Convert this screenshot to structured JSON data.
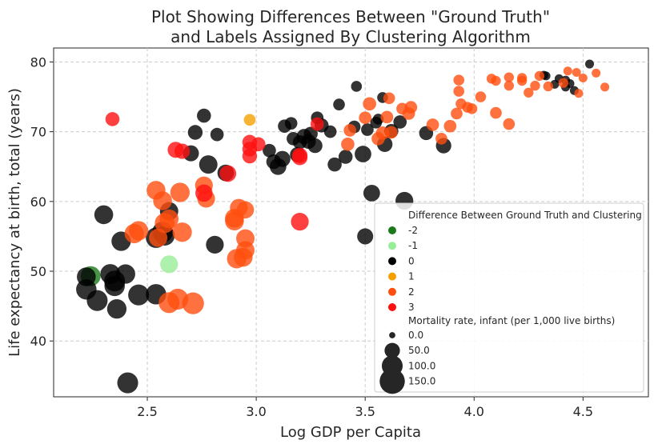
{
  "chart_data": {
    "type": "scatter",
    "title": [
      "Plot Showing Differences Between \"Ground Truth\"",
      "and Labels Assigned By Clustering Algorithm"
    ],
    "xlabel": "Log GDP per Capita",
    "ylabel": "Life expectancy at birth, total (years)",
    "xlim": [
      2.07,
      4.8
    ],
    "ylim": [
      32,
      82
    ],
    "xticks": [
      2.5,
      3.0,
      3.5,
      4.0,
      4.5
    ],
    "xtick_labels": [
      "2.5",
      "3.0",
      "3.5",
      "4.0",
      "4.5"
    ],
    "yticks": [
      40,
      50,
      60,
      70,
      80
    ],
    "ytick_labels": [
      "40",
      "50",
      "60",
      "70",
      "80"
    ],
    "grid": true,
    "legend": {
      "placement": "lower-right",
      "hue_title": "Difference Between Ground Truth and Clustering",
      "hue_entries": [
        {
          "label": "-2",
          "color": "#1a7a1a"
        },
        {
          "label": "-1",
          "color": "#98ee98"
        },
        {
          "label": "0",
          "color": "#000000"
        },
        {
          "label": "1",
          "color": "#f5a000"
        },
        {
          "label": "2",
          "color": "#ff4f0f"
        },
        {
          "label": "3",
          "color": "#ff1010"
        }
      ],
      "size_title": "Mortality rate, infant (per 1,000 live births)",
      "size_entries": [
        {
          "label": "0.0",
          "value": 0
        },
        {
          "label": "50.0",
          "value": 50
        },
        {
          "label": "100.0",
          "value": 100
        },
        {
          "label": "150.0",
          "value": 150
        }
      ]
    },
    "series": [
      {
        "name": "-2",
        "color": "#1a7a1a",
        "points": [
          [
            2.24,
            49.3,
            90
          ]
        ]
      },
      {
        "name": "-1",
        "color": "#98ee98",
        "points": [
          [
            2.6,
            51.0,
            70
          ]
        ]
      },
      {
        "name": "0",
        "color": "#000000",
        "points": [
          [
            2.22,
            49.2,
            80
          ],
          [
            2.22,
            47.4,
            95
          ],
          [
            2.27,
            45.8,
            100
          ],
          [
            2.3,
            58.1,
            80
          ],
          [
            2.33,
            49.6,
            90
          ],
          [
            2.35,
            47.9,
            95
          ],
          [
            2.36,
            44.6,
            85
          ],
          [
            2.38,
            54.3,
            85
          ],
          [
            2.4,
            49.6,
            85
          ],
          [
            2.41,
            34.0,
            100
          ],
          [
            2.35,
            48.6,
            100
          ],
          [
            2.46,
            46.6,
            100
          ],
          [
            2.54,
            46.7,
            95
          ],
          [
            2.54,
            54.8,
            95
          ],
          [
            2.57,
            55.6,
            100
          ],
          [
            2.58,
            55.1,
            90
          ],
          [
            2.6,
            58.6,
            75
          ],
          [
            2.7,
            66.9,
            55
          ],
          [
            2.72,
            69.9,
            45
          ],
          [
            2.76,
            72.3,
            40
          ],
          [
            2.78,
            65.3,
            75
          ],
          [
            2.81,
            53.8,
            70
          ],
          [
            2.82,
            69.6,
            35
          ],
          [
            2.86,
            64.1,
            60
          ],
          [
            3.06,
            67.3,
            35
          ],
          [
            3.08,
            65.7,
            45
          ],
          [
            3.1,
            65.0,
            60
          ],
          [
            3.12,
            66.1,
            55
          ],
          [
            3.13,
            70.8,
            35
          ],
          [
            3.16,
            71.2,
            30
          ],
          [
            3.17,
            69.0,
            35
          ],
          [
            3.19,
            66.7,
            50
          ],
          [
            3.2,
            68.5,
            40
          ],
          [
            3.22,
            69.3,
            50
          ],
          [
            3.24,
            68.6,
            45
          ],
          [
            3.25,
            69.7,
            40
          ],
          [
            3.27,
            68.0,
            45
          ],
          [
            3.28,
            72.0,
            30
          ],
          [
            3.3,
            70.9,
            40
          ],
          [
            3.34,
            70.0,
            30
          ],
          [
            3.36,
            65.3,
            40
          ],
          [
            3.38,
            73.9,
            25
          ],
          [
            3.41,
            66.4,
            40
          ],
          [
            3.45,
            70.7,
            30
          ],
          [
            3.46,
            76.5,
            20
          ],
          [
            3.49,
            66.8,
            60
          ],
          [
            3.5,
            55.0,
            55
          ],
          [
            3.51,
            70.3,
            30
          ],
          [
            3.53,
            61.2,
            60
          ],
          [
            3.55,
            71.3,
            25
          ],
          [
            3.56,
            71.8,
            20
          ],
          [
            3.58,
            74.9,
            20
          ],
          [
            3.59,
            68.2,
            50
          ],
          [
            3.62,
            70.1,
            40
          ],
          [
            3.66,
            71.4,
            35
          ],
          [
            3.68,
            60.1,
            70
          ],
          [
            3.78,
            69.8,
            40
          ],
          [
            3.86,
            68.0,
            50
          ],
          [
            4.33,
            78.0,
            10
          ],
          [
            4.37,
            76.8,
            10
          ],
          [
            4.39,
            77.6,
            10
          ],
          [
            4.42,
            76.4,
            10
          ],
          [
            4.44,
            76.9,
            10
          ],
          [
            4.46,
            75.9,
            10
          ],
          [
            4.53,
            79.7,
            10
          ],
          [
            4.42,
            77.4,
            10
          ],
          [
            4.32,
            78.1,
            10
          ]
        ]
      },
      {
        "name": "1",
        "color": "#f5a000",
        "points": [
          [
            2.97,
            71.7,
            25
          ]
        ]
      },
      {
        "name": "2",
        "color": "#ff4f0f",
        "points": [
          [
            2.44,
            55.4,
            85
          ],
          [
            2.46,
            55.8,
            85
          ],
          [
            2.54,
            61.6,
            80
          ],
          [
            2.55,
            54.8,
            75
          ],
          [
            2.57,
            60.1,
            80
          ],
          [
            2.58,
            56.9,
            90
          ],
          [
            2.6,
            57.5,
            80
          ],
          [
            2.6,
            45.5,
            100
          ],
          [
            2.64,
            46.0,
            100
          ],
          [
            2.65,
            61.3,
            85
          ],
          [
            2.66,
            55.6,
            85
          ],
          [
            2.71,
            45.4,
            110
          ],
          [
            2.76,
            62.3,
            70
          ],
          [
            2.77,
            60.4,
            70
          ],
          [
            2.9,
            57.2,
            80
          ],
          [
            2.9,
            57.6,
            80
          ],
          [
            2.91,
            51.8,
            85
          ],
          [
            2.92,
            59.1,
            70
          ],
          [
            2.94,
            52.0,
            80
          ],
          [
            2.95,
            58.8,
            65
          ],
          [
            2.95,
            54.7,
            75
          ],
          [
            2.95,
            53.0,
            75
          ],
          [
            3.42,
            68.2,
            35
          ],
          [
            3.43,
            70.2,
            30
          ],
          [
            3.5,
            72.0,
            30
          ],
          [
            3.52,
            74.0,
            35
          ],
          [
            3.56,
            69.0,
            35
          ],
          [
            3.58,
            69.8,
            35
          ],
          [
            3.6,
            72.1,
            30
          ],
          [
            3.61,
            74.8,
            25
          ],
          [
            3.62,
            69.9,
            30
          ],
          [
            3.67,
            73.3,
            25
          ],
          [
            3.7,
            72.6,
            30
          ],
          [
            3.71,
            73.5,
            30
          ],
          [
            3.81,
            71.0,
            30
          ],
          [
            3.85,
            69.0,
            25
          ],
          [
            3.89,
            70.8,
            30
          ],
          [
            3.92,
            72.6,
            25
          ],
          [
            3.93,
            77.4,
            20
          ],
          [
            3.93,
            75.8,
            20
          ],
          [
            3.94,
            74.0,
            20
          ],
          [
            3.97,
            73.5,
            20
          ],
          [
            3.99,
            73.3,
            20
          ],
          [
            4.03,
            75.0,
            20
          ],
          [
            4.08,
            77.6,
            15
          ],
          [
            4.1,
            72.7,
            25
          ],
          [
            4.1,
            77.3,
            15
          ],
          [
            4.16,
            77.8,
            15
          ],
          [
            4.16,
            76.6,
            15
          ],
          [
            4.16,
            71.1,
            25
          ],
          [
            4.22,
            77.7,
            15
          ],
          [
            4.22,
            77.3,
            15
          ],
          [
            4.25,
            75.6,
            15
          ],
          [
            4.28,
            76.6,
            15
          ],
          [
            4.3,
            78.0,
            15
          ],
          [
            4.34,
            76.5,
            15
          ],
          [
            4.41,
            77.0,
            15
          ],
          [
            4.43,
            78.7,
            10
          ],
          [
            4.47,
            78.5,
            10
          ],
          [
            4.48,
            75.5,
            10
          ],
          [
            4.5,
            77.7,
            10
          ],
          [
            4.56,
            78.4,
            10
          ],
          [
            4.6,
            76.4,
            10
          ]
        ]
      },
      {
        "name": "3",
        "color": "#ff1010",
        "points": [
          [
            2.34,
            71.8,
            40
          ],
          [
            2.63,
            67.4,
            55
          ],
          [
            2.66,
            67.2,
            50
          ],
          [
            2.76,
            61.2,
            65
          ],
          [
            2.87,
            64.0,
            60
          ],
          [
            2.97,
            68.5,
            45
          ],
          [
            2.97,
            66.5,
            45
          ],
          [
            2.97,
            67.5,
            45
          ],
          [
            3.01,
            68.2,
            40
          ],
          [
            3.2,
            66.3,
            50
          ],
          [
            3.2,
            66.6,
            50
          ],
          [
            3.2,
            57.1,
            70
          ],
          [
            3.28,
            71.1,
            35
          ]
        ]
      }
    ]
  }
}
